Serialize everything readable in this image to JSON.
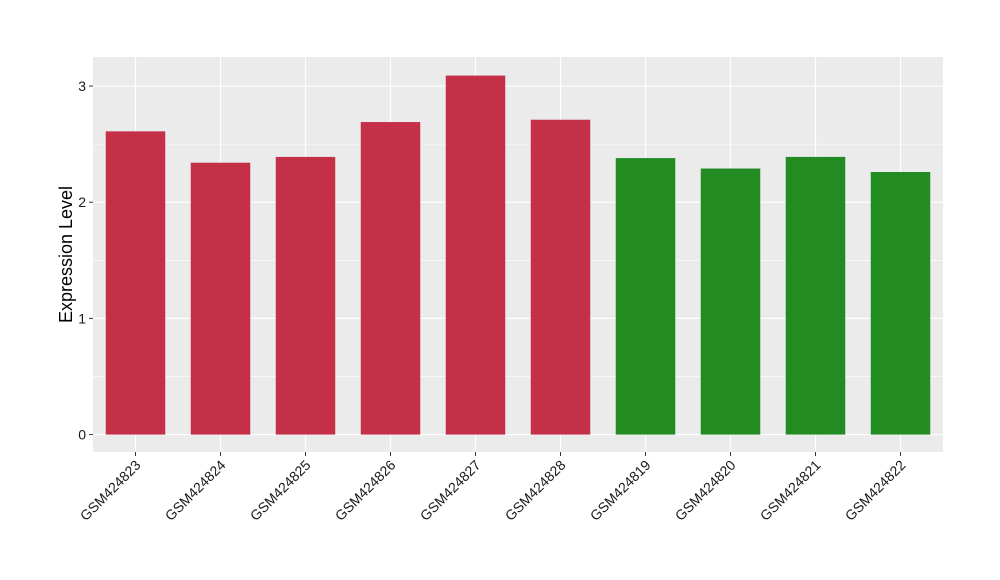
{
  "chart_data": {
    "type": "bar",
    "title": "",
    "xlabel": "",
    "ylabel": "Expression Level",
    "categories": [
      "GSM424823",
      "GSM424824",
      "GSM424825",
      "GSM424826",
      "GSM424827",
      "GSM424828",
      "GSM424819",
      "GSM424820",
      "GSM424821",
      "GSM424822"
    ],
    "values": [
      2.61,
      2.34,
      2.39,
      2.69,
      3.09,
      2.71,
      2.38,
      2.29,
      2.39,
      2.26
    ],
    "groups": [
      "A",
      "A",
      "A",
      "A",
      "A",
      "A",
      "B",
      "B",
      "B",
      "B"
    ],
    "group_colors": {
      "A": "#c33048",
      "B": "#228b22"
    },
    "ylim": [
      -0.15,
      3.25
    ],
    "yticks": [
      0,
      1,
      2,
      3
    ],
    "grid": true,
    "panel_background": "#ebebeb",
    "grid_color": "#ffffff",
    "legend": "none"
  }
}
